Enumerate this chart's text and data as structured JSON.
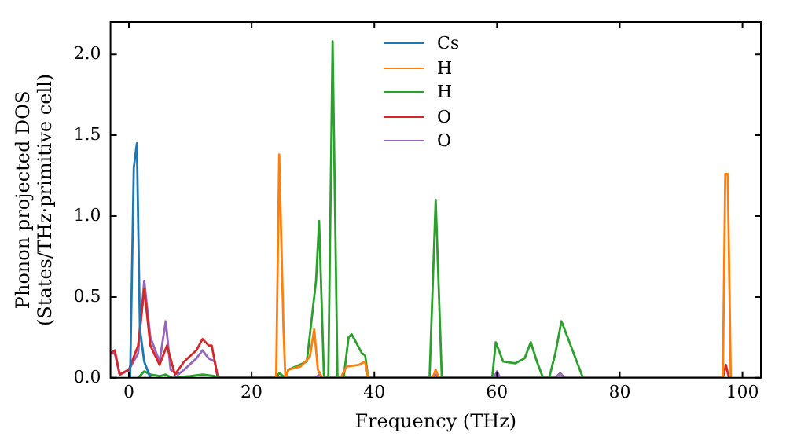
{
  "chart_data": {
    "type": "line",
    "xlabel": "Frequency (THz)",
    "ylabel": "Phonon projected DOS\n(States/THz·primitive cell)",
    "xlim": [
      -3,
      103
    ],
    "ylim": [
      0,
      2.2
    ],
    "xticks": [
      0,
      20,
      40,
      60,
      80,
      100
    ],
    "yticks": [
      {
        "value": 0,
        "label": "0.0"
      },
      0.5,
      {
        "value": 1,
        "label": "1.0"
      },
      1.5,
      {
        "value": 2,
        "label": "2.0"
      }
    ],
    "legend": "top",
    "grid": false,
    "marker": "none",
    "line_style": "solid",
    "series": [
      {
        "name": "Cs",
        "color": "#1f77b4",
        "x": [
          0.2,
          0.8,
          1.3,
          1.8,
          2.5,
          3.5
        ],
        "values": [
          0,
          1.3,
          1.45,
          0.3,
          0.1,
          0
        ]
      },
      {
        "name": "H",
        "color": "#ff7f0e",
        "x": [
          24,
          24.5,
          25.2,
          25.5,
          26,
          28,
          29.5,
          30.2,
          30.8,
          31.5,
          34.5,
          35.5,
          37.5,
          38.5,
          39,
          49.5,
          50,
          50.5,
          96.8,
          97.2,
          97.6,
          98.1
        ],
        "values": [
          0,
          1.38,
          0.3,
          0,
          0.05,
          0.07,
          0.13,
          0.3,
          0.05,
          0,
          0,
          0.07,
          0.08,
          0.1,
          0,
          0,
          0.05,
          0,
          0,
          1.26,
          1.26,
          0
        ]
      },
      {
        "name": "H",
        "color": "#2ca02c",
        "x": [
          1.5,
          2.5,
          3.5,
          5,
          6,
          7,
          10,
          12,
          14,
          15,
          24,
          24.5,
          25.5,
          26,
          29,
          30.5,
          31,
          31.8,
          32.5,
          33.2,
          34,
          35,
          35.8,
          36.3,
          38,
          38.5,
          39,
          49,
          50,
          51,
          59.2,
          59.8,
          61,
          63,
          64.5,
          65.5,
          66.5,
          67.5,
          68.5,
          69.5,
          70.5,
          71.5,
          73,
          74
        ],
        "values": [
          0,
          0.04,
          0.02,
          0.01,
          0.02,
          0,
          0.01,
          0.02,
          0.01,
          0,
          0,
          0.03,
          0,
          0.05,
          0.1,
          0.6,
          0.97,
          0,
          0,
          2.08,
          0,
          0,
          0.25,
          0.27,
          0.15,
          0.14,
          0,
          0,
          1.1,
          0,
          0,
          0.22,
          0.1,
          0.09,
          0.12,
          0.22,
          0.1,
          0,
          0,
          0.15,
          0.35,
          0.25,
          0.1,
          0
        ]
      },
      {
        "name": "O",
        "color": "#d62728",
        "x": [
          -3,
          -2.3,
          -1.5,
          0,
          1.5,
          2.5,
          3.5,
          5,
          6.2,
          7.5,
          9,
          11,
          12,
          13,
          13.5,
          14.5,
          96.8,
          97.3,
          97.8
        ],
        "values": [
          0.15,
          0.17,
          0.02,
          0.05,
          0.2,
          0.55,
          0.2,
          0.08,
          0.2,
          0.02,
          0.1,
          0.17,
          0.24,
          0.2,
          0.2,
          0,
          0,
          0.08,
          0
        ]
      },
      {
        "name": "O",
        "color": "#9467bd",
        "x": [
          -3,
          -2.3,
          -1.5,
          0,
          1.5,
          2.5,
          3.5,
          5,
          6,
          6.8,
          8,
          9,
          11,
          12,
          13,
          14,
          14.5,
          30.5,
          31,
          31.5,
          49.5,
          50,
          50.5,
          59.5,
          60,
          60.5,
          69.5,
          70.3,
          71
        ],
        "values": [
          0.15,
          0.15,
          0.02,
          0.05,
          0.15,
          0.6,
          0.25,
          0.1,
          0.35,
          0.05,
          0.02,
          0.05,
          0.12,
          0.17,
          0.12,
          0.1,
          0,
          0,
          0.02,
          0,
          0,
          0.02,
          0,
          0,
          0.04,
          0,
          0,
          0.03,
          0
        ]
      }
    ]
  }
}
